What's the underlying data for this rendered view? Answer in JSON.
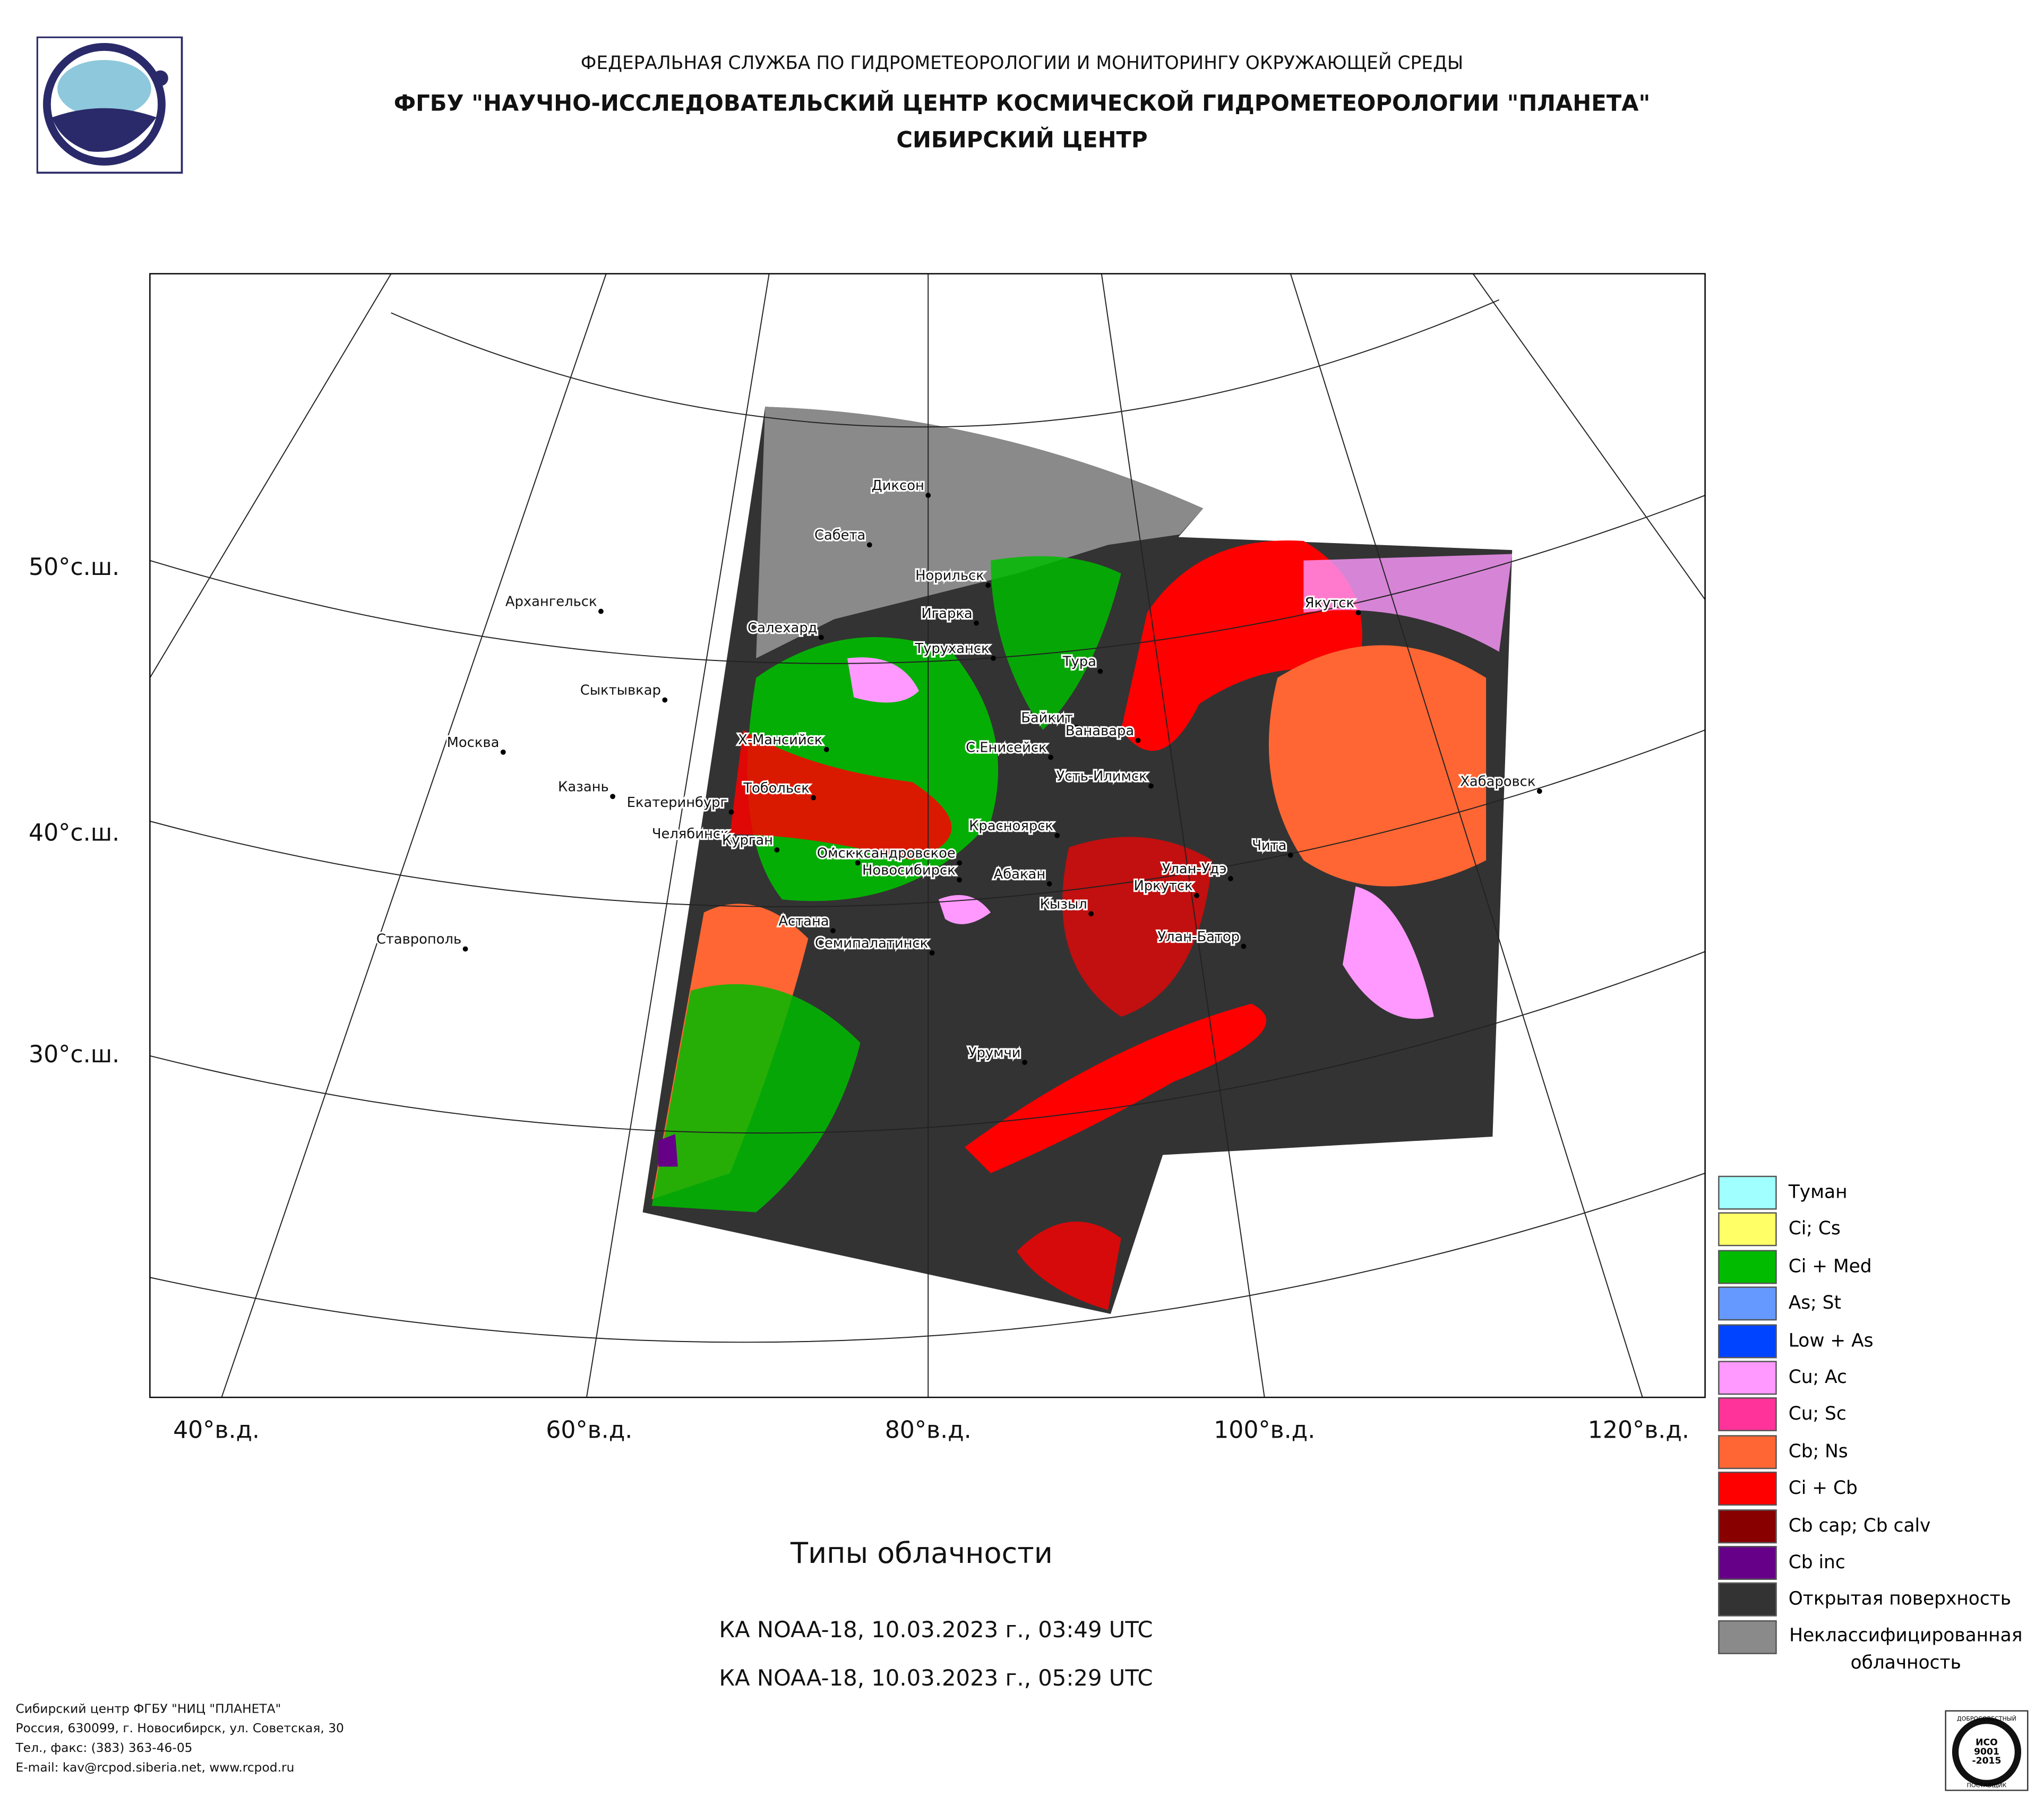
{
  "header": {
    "line1": "ФЕДЕРАЛЬНАЯ СЛУЖБА ПО ГИДРОМЕТЕОРОЛОГИИ И МОНИТОРИНГУ ОКРУЖАЮЩЕЙ СРЕДЫ",
    "line2": "ФГБУ \"НАУЧНО-ИССЛЕДОВАТЕЛЬСКИЙ ЦЕНТР КОСМИЧЕСКОЙ ГИДРОМЕТЕОРОЛОГИИ \"ПЛАНЕТА\"",
    "line3": "СИБИРСКИЙ ЦЕНТР"
  },
  "map": {
    "lat_labels": [
      "50°с.ш.",
      "40°с.ш.",
      "30°с.ш."
    ],
    "lon_labels": [
      "40°в.д.",
      "60°в.д.",
      "80°в.д.",
      "100°в.д.",
      "120°в.д."
    ],
    "cities": [
      "Диксон",
      "Сабета",
      "Норильск",
      "Игарка",
      "Архангельск",
      "Салехард",
      "Туруханск",
      "Тура",
      "Якутск",
      "Сыктывкар",
      "Х-Мансийск",
      "Байкит",
      "Ванавара",
      "Москва",
      "С.Енисейск",
      "Казань",
      "Екатеринбург",
      "Тобольск",
      "Усть-Илимск",
      "Хабаровск",
      "Челябинск",
      "Курган",
      "Красноярск",
      "Чита",
      "Александровское",
      "Омск",
      "Новосибирск",
      "Абакан",
      "Улан-Удэ",
      "Иркутск",
      "Кызыл",
      "Ставрополь",
      "Астана",
      "Семипалатинск",
      "Улан-Батор",
      "Урумчи"
    ]
  },
  "legend": [
    {
      "label": "Туман",
      "color": "#a0ffff"
    },
    {
      "label": "Ci; Cs",
      "color": "#ffff66"
    },
    {
      "label": "Ci + Med",
      "color": "#00bb00"
    },
    {
      "label": "As; St",
      "color": "#6699ff"
    },
    {
      "label": "Low + As",
      "color": "#0044ff"
    },
    {
      "label": "Cu; Ac",
      "color": "#ff99ff"
    },
    {
      "label": "Cu; Sc",
      "color": "#ff3399"
    },
    {
      "label": "Cb; Ns",
      "color": "#ff6633"
    },
    {
      "label": "Ci + Cb",
      "color": "#ff0000"
    },
    {
      "label": "Cb cap; Cb calv",
      "color": "#880000"
    },
    {
      "label": "Cb inc",
      "color": "#660088"
    },
    {
      "label": "Открытая поверхность",
      "color": "#333333"
    },
    {
      "label": "Неклассифицированная облачность",
      "color": "#8a8a8a"
    }
  ],
  "title": "Типы облачности",
  "passes": [
    "КА NOAA-18, 10.03.2023 г., 03:49 UTC",
    "КА NOAA-18, 10.03.2023 г., 05:29 UTC"
  ],
  "footer": [
    "Сибирский центр ФГБУ \"НИЦ \"ПЛАНЕТА\"",
    "Россия, 630099, г. Новосибирск, ул. Советская, 30",
    "Тел., факс: (383) 363-46-05",
    "E-mail: kav@rcpod.siberia.net, www.rcpod.ru"
  ],
  "badge": {
    "top": "ДОБРОСОВЕСТНЫЙ",
    "lines": [
      "ИСО",
      "9001",
      "-2015"
    ],
    "bottom": "ПОСТАВЩИК"
  }
}
